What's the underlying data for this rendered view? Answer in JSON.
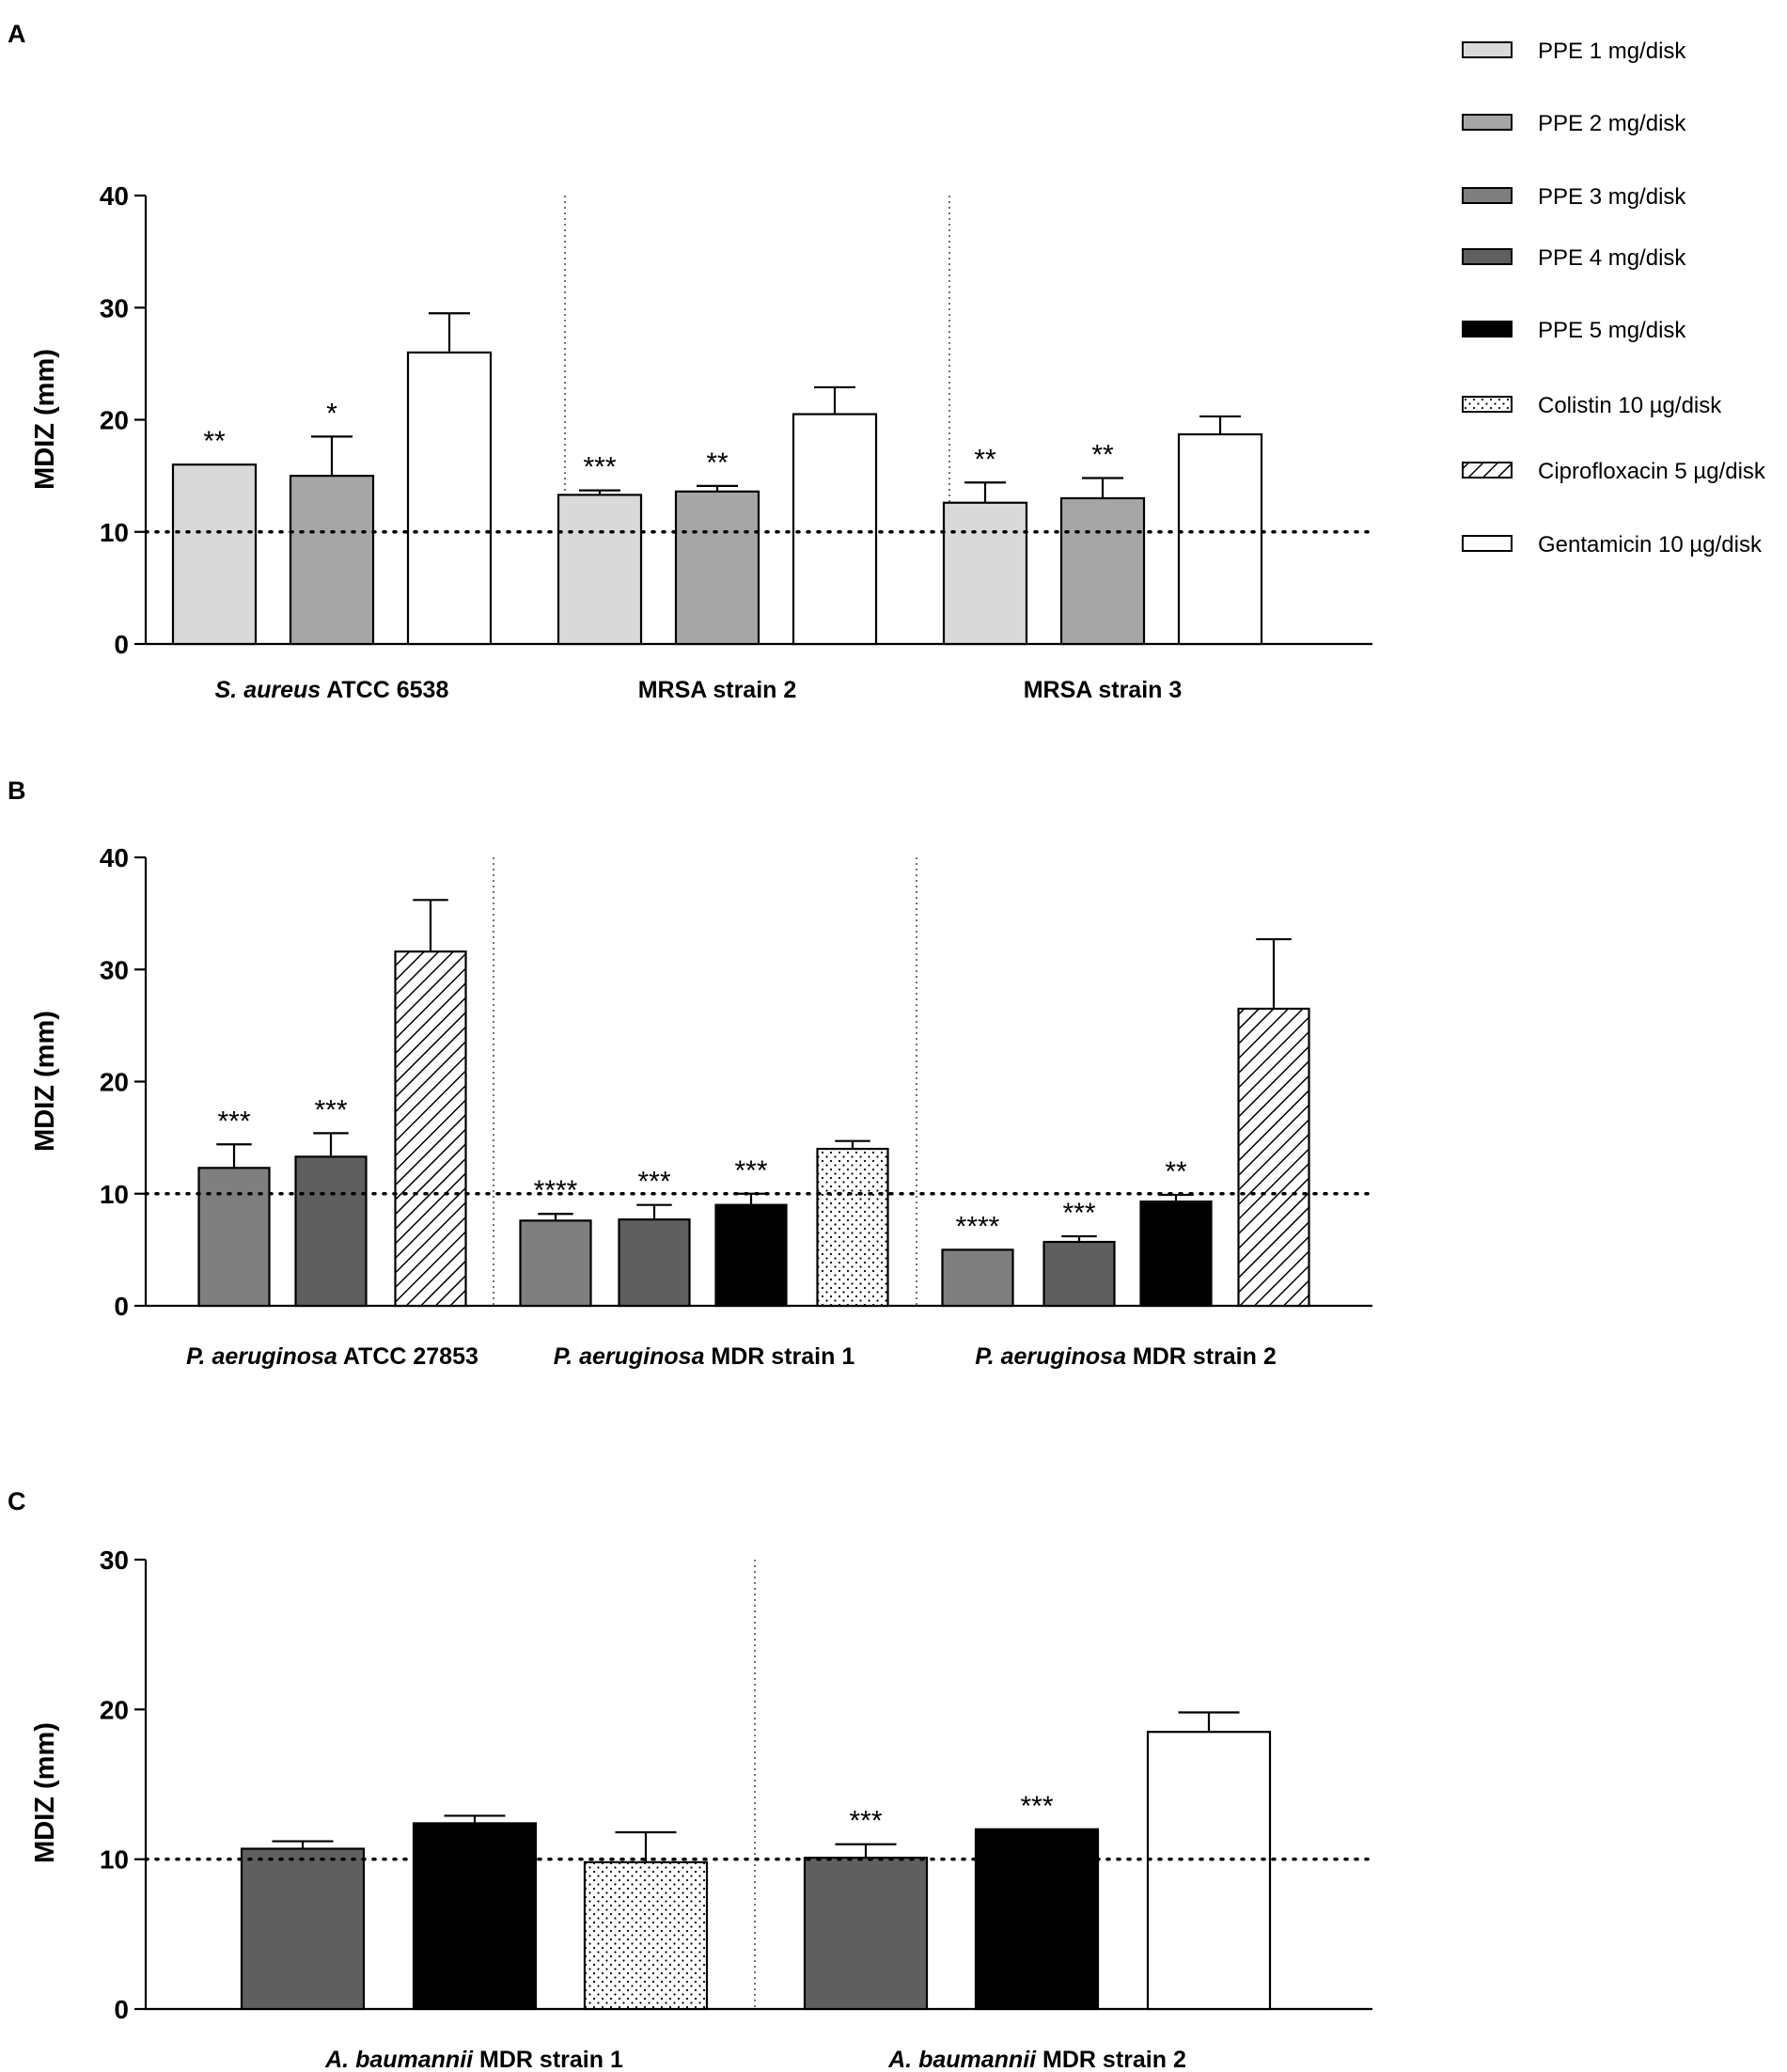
{
  "figure": {
    "legend": [
      {
        "key": "ppe1",
        "label": "PPE 1 mg/disk",
        "fill": "#d9d9d9",
        "pattern": "none"
      },
      {
        "key": "ppe2",
        "label": "PPE 2 mg/disk",
        "fill": "#a6a6a6",
        "pattern": "none"
      },
      {
        "key": "ppe3",
        "label": "PPE 3 mg/disk",
        "fill": "#7f7f7f",
        "pattern": "none"
      },
      {
        "key": "ppe4",
        "label": "PPE 4 mg/disk",
        "fill": "#5f5f5f",
        "pattern": "none"
      },
      {
        "key": "ppe5",
        "label": "PPE 5 mg/disk",
        "fill": "#000000",
        "pattern": "none"
      },
      {
        "key": "colistin",
        "label": "Colistin 10 µg/disk",
        "fill": "#ffffff",
        "pattern": "dots"
      },
      {
        "key": "cipro",
        "label": "Ciprofloxacin 5 µg/disk",
        "fill": "#ffffff",
        "pattern": "hatch"
      },
      {
        "key": "genta",
        "label": "Gentamicin 10 µg/disk",
        "fill": "#ffffff",
        "pattern": "none"
      }
    ]
  },
  "chart_data": [
    {
      "panel": "A",
      "type": "bar",
      "ylabel": "MDIZ (mm)",
      "ylim": [
        0,
        40
      ],
      "yticks": [
        0,
        10,
        20,
        30,
        40
      ],
      "reference_line": 10,
      "groups": [
        {
          "label_italic": "S. aureus",
          "label_rest": " ATCC 6538",
          "bars": [
            {
              "series": "ppe1",
              "value": 16.0,
              "error": 0,
              "sig": "**"
            },
            {
              "series": "ppe2",
              "value": 15.0,
              "error": 3.5,
              "sig": "*"
            },
            {
              "series": "genta",
              "value": 26.0,
              "error": 3.5,
              "sig": ""
            }
          ]
        },
        {
          "label_italic": "",
          "label_rest": "MRSA strain 2",
          "bars": [
            {
              "series": "ppe1",
              "value": 13.3,
              "error": 0.4,
              "sig": "***"
            },
            {
              "series": "ppe2",
              "value": 13.6,
              "error": 0.5,
              "sig": "**"
            },
            {
              "series": "genta",
              "value": 20.5,
              "error": 2.4,
              "sig": ""
            }
          ]
        },
        {
          "label_italic": "",
          "label_rest": "MRSA strain 3",
          "bars": [
            {
              "series": "ppe1",
              "value": 12.6,
              "error": 1.8,
              "sig": "**"
            },
            {
              "series": "ppe2",
              "value": 13.0,
              "error": 1.8,
              "sig": "**"
            },
            {
              "series": "genta",
              "value": 18.7,
              "error": 1.6,
              "sig": ""
            }
          ]
        }
      ]
    },
    {
      "panel": "B",
      "type": "bar",
      "ylabel": "MDIZ (mm)",
      "ylim": [
        0,
        40
      ],
      "yticks": [
        0,
        10,
        20,
        30,
        40
      ],
      "reference_line": 10,
      "groups": [
        {
          "label_italic": "P. aeruginosa",
          "label_rest": " ATCC 27853",
          "bars": [
            {
              "series": "ppe3",
              "value": 12.3,
              "error": 2.1,
              "sig": "***"
            },
            {
              "series": "ppe4",
              "value": 13.3,
              "error": 2.1,
              "sig": "***"
            },
            {
              "series": "cipro",
              "value": 31.6,
              "error": 4.6,
              "sig": ""
            }
          ]
        },
        {
          "label_italic": "P. aeruginosa",
          "label_rest": " MDR strain 1",
          "bars": [
            {
              "series": "ppe3",
              "value": 7.6,
              "error": 0.6,
              "sig": "****"
            },
            {
              "series": "ppe4",
              "value": 7.7,
              "error": 1.3,
              "sig": "***"
            },
            {
              "series": "ppe5",
              "value": 9.0,
              "error": 1.0,
              "sig": "***"
            },
            {
              "series": "colistin",
              "value": 14.0,
              "error": 0.7,
              "sig": ""
            }
          ]
        },
        {
          "label_italic": "P. aeruginosa",
          "label_rest": " MDR strain 2",
          "bars": [
            {
              "series": "ppe3",
              "value": 5.0,
              "error": 0,
              "sig": "****"
            },
            {
              "series": "ppe4",
              "value": 5.7,
              "error": 0.5,
              "sig": "***"
            },
            {
              "series": "ppe5",
              "value": 9.3,
              "error": 0.6,
              "sig": "**"
            },
            {
              "series": "cipro",
              "value": 26.5,
              "error": 6.2,
              "sig": ""
            }
          ]
        }
      ]
    },
    {
      "panel": "C",
      "type": "bar",
      "ylabel": "MDIZ (mm)",
      "ylim": [
        0,
        30
      ],
      "yticks": [
        0,
        10,
        20,
        30
      ],
      "reference_line": 10,
      "groups": [
        {
          "label_italic": "A. baumannii",
          "label_rest": "  MDR strain 1",
          "bars": [
            {
              "series": "ppe4",
              "value": 10.7,
              "error": 0.5,
              "sig": ""
            },
            {
              "series": "ppe5",
              "value": 12.4,
              "error": 0.5,
              "sig": ""
            },
            {
              "series": "colistin",
              "value": 9.8,
              "error": 2.0,
              "sig": ""
            }
          ]
        },
        {
          "label_italic": "A. baumannii",
          "label_rest": "  MDR strain 2",
          "bars": [
            {
              "series": "ppe4",
              "value": 10.1,
              "error": 0.9,
              "sig": "***"
            },
            {
              "series": "ppe5",
              "value": 12.0,
              "error": 0,
              "sig": "***"
            },
            {
              "series": "genta",
              "value": 18.5,
              "error": 1.3,
              "sig": ""
            }
          ]
        }
      ]
    }
  ]
}
